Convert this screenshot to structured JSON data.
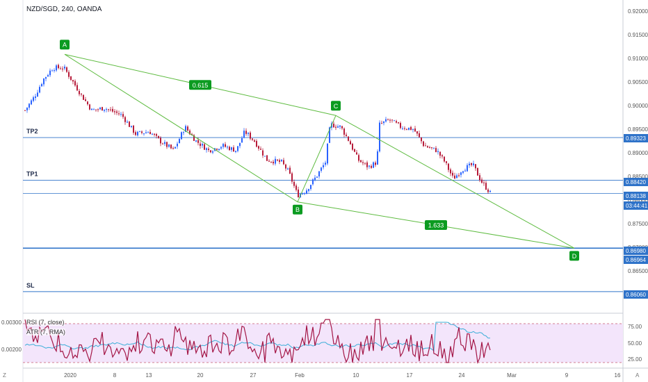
{
  "symbol_title": "NZD/SGD, 240, OANDA",
  "rsi_label": "RSI (7, close)",
  "atr_label": "ATR (7, RMA)",
  "corner_left": "Z",
  "corner_right": "A",
  "colors": {
    "up": "#2962ff",
    "down": "#b71c3a",
    "pattern": "#5dbb3f",
    "marker": "#0b9b20",
    "hline": "#2f73c9",
    "rsi": "#a31545",
    "atr": "#3aaed8",
    "band": "#f3e5fb"
  },
  "price_axis": {
    "ticks": [
      "0.92000",
      "0.91500",
      "0.91000",
      "0.90500",
      "0.90000",
      "0.89500",
      "0.89000",
      "0.88500",
      "0.88000",
      "0.87500",
      "0.87000",
      "0.86500",
      "0.86000"
    ],
    "tagged": [
      {
        "text": "0.89323",
        "fill": "#2f73c9"
      },
      {
        "text": "0.88420",
        "fill": "#2f73c9"
      },
      {
        "text": "0.88138",
        "fill": "#2f73c9"
      },
      {
        "text": "03:44:41",
        "fill": "#2f73c9"
      },
      {
        "text": "0.86980",
        "fill": "#2f73c9"
      },
      {
        "text": "0.86964",
        "fill": "#2f73c9"
      },
      {
        "text": "0.86060",
        "fill": "#2f73c9"
      }
    ]
  },
  "hlines": {
    "tp2": {
      "label": "TP2",
      "value": 0.89323
    },
    "tp1": {
      "label": "TP1",
      "value": 0.8842
    },
    "last": {
      "value": 0.88138
    },
    "d_level": {
      "value": 0.8698
    },
    "sl": {
      "label": "SL",
      "value": 0.8606
    }
  },
  "pattern": {
    "points": [
      {
        "label": "A",
        "value": 0.91085
      },
      {
        "label": "B",
        "value": 0.8796
      },
      {
        "label": "C",
        "value": 0.8979
      },
      {
        "label": "D",
        "value": 0.8698
      }
    ],
    "ratios": [
      {
        "text": "0.615"
      },
      {
        "text": "1.633"
      }
    ]
  },
  "ind_axis": {
    "left": [
      "0.00300",
      "0.00200"
    ],
    "right": [
      "75.00",
      "50.00",
      "25.00"
    ]
  },
  "time_axis": [
    "2020",
    "8",
    "13",
    "20",
    "27",
    "Feb",
    "10",
    "17",
    "24",
    "Mar",
    "9",
    "16"
  ]
}
